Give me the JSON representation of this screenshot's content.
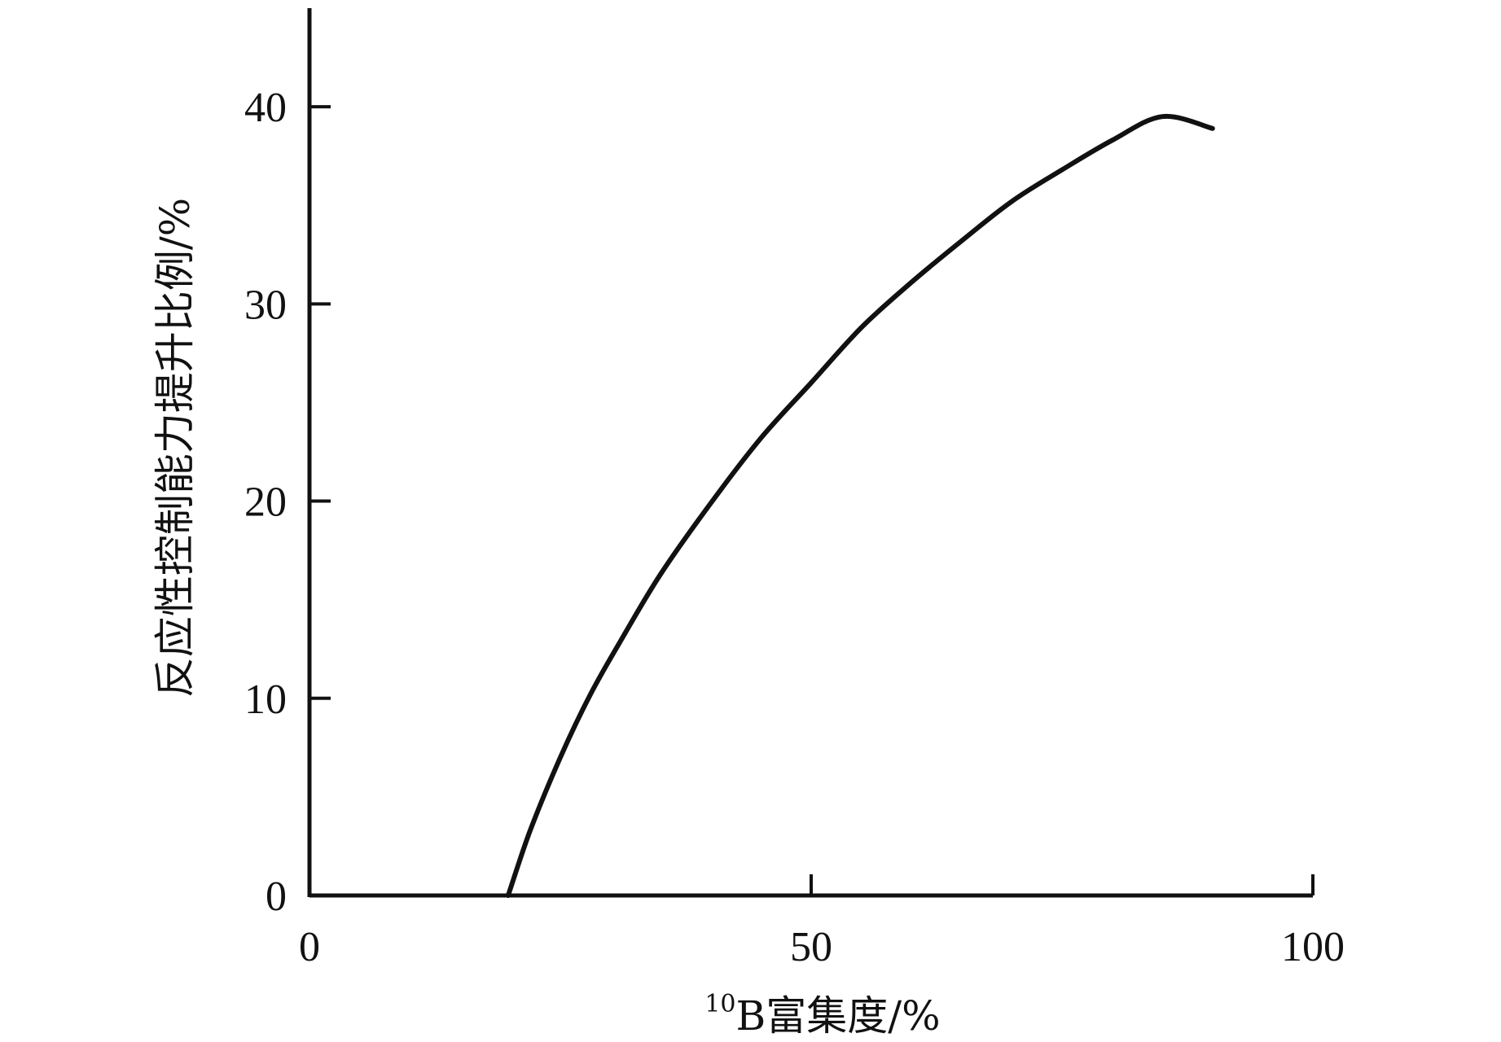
{
  "chart_data": {
    "type": "line",
    "title": "",
    "xlabel": "B富集度/%",
    "xlabel_superscript": "10",
    "ylabel": "反应性控制能力提升比例/%",
    "xlim": [
      0,
      100
    ],
    "ylim": [
      0,
      45
    ],
    "xticks": [
      0,
      50,
      100
    ],
    "yticks": [
      0,
      10,
      20,
      30,
      40
    ],
    "grid": false,
    "legend": "none",
    "line_color": "#111111",
    "series": [
      {
        "name": "",
        "x": [
          19.8,
          22,
          25,
          28,
          31,
          35,
          40,
          45,
          50,
          55,
          60,
          65,
          70,
          75,
          80,
          85,
          90
        ],
        "y": [
          0,
          3.3,
          7.0,
          10.2,
          12.9,
          16.3,
          19.9,
          23.2,
          26.0,
          28.8,
          31.1,
          33.2,
          35.2,
          36.8,
          38.3,
          39.5,
          38.9
        ]
      }
    ]
  }
}
